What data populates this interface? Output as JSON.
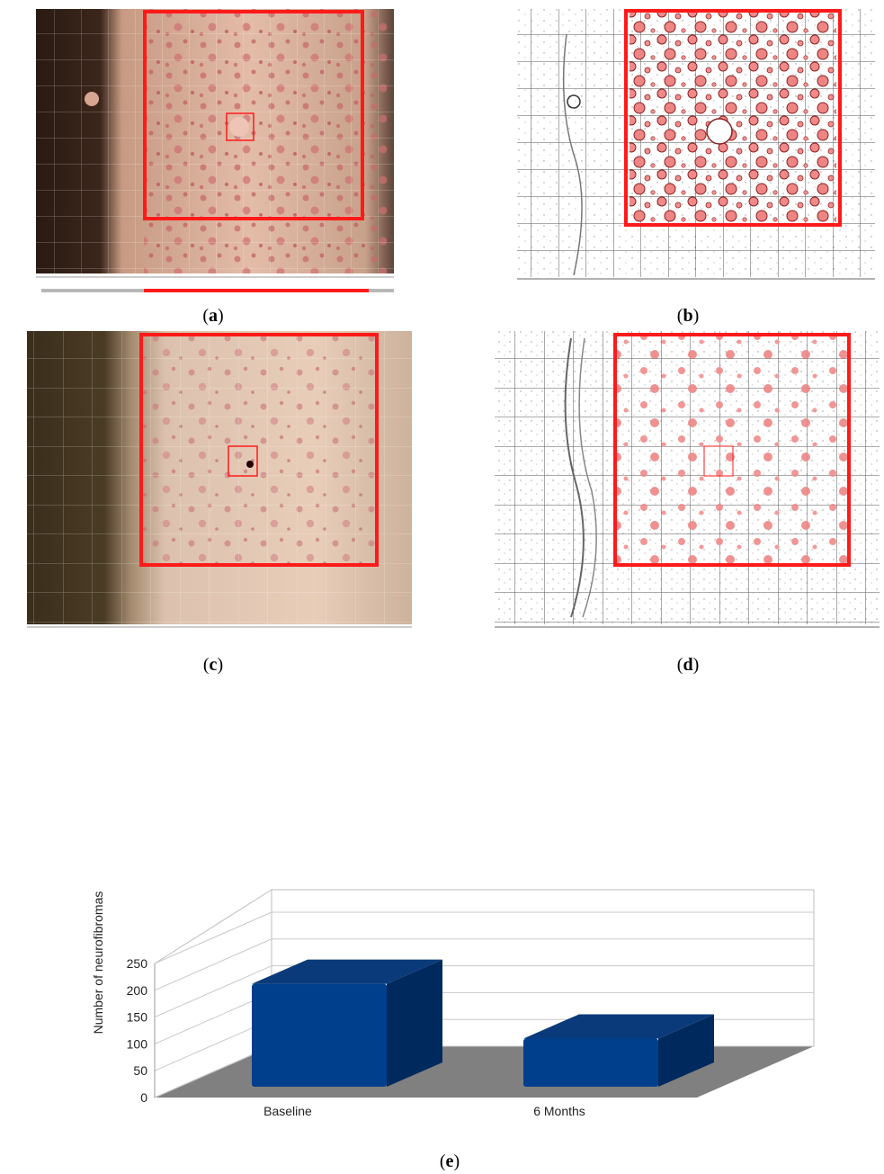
{
  "panels": [
    {
      "label": "a",
      "kind": "photo"
    },
    {
      "label": "b",
      "kind": "edge-map"
    },
    {
      "label": "c",
      "kind": "photo"
    },
    {
      "label": "d",
      "kind": "edge-map"
    }
  ],
  "colors": {
    "roi_red": "#ff1a1a",
    "bar_front": "#003f8c",
    "bar_side": "#002a5e",
    "bar_top": "#0a3a7a",
    "floor": "#808080"
  },
  "chart_label": "e",
  "chart_data": {
    "type": "bar",
    "categories": [
      "Baseline",
      "6 Months"
    ],
    "values": [
      212,
      110
    ],
    "title": "",
    "xlabel": "",
    "ylabel": "Number of neurofibromas",
    "ylim": [
      0,
      250
    ],
    "yticks": [
      0,
      50,
      100,
      150,
      200,
      250
    ],
    "grid": true,
    "legend": "none",
    "style": "3d"
  }
}
